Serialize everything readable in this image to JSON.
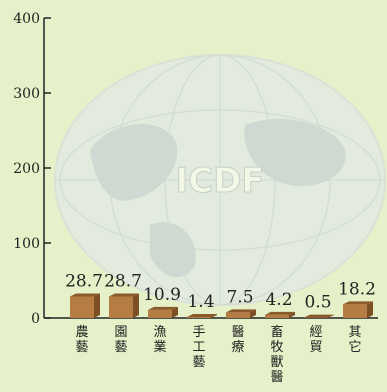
{
  "chart_data": {
    "type": "bar",
    "categories": [
      "農藝",
      "園藝",
      "漁業",
      "手工藝",
      "醫療",
      "畜牧獸醫",
      "經貿",
      "其它"
    ],
    "values": [
      28.7,
      28.7,
      10.9,
      1.4,
      7.5,
      4.2,
      0.5,
      18.2
    ],
    "value_labels": [
      "28.7",
      "28.7",
      "10.9",
      "1.4",
      "7.5",
      "4.2",
      "0.5",
      "18.2"
    ],
    "y_ticks": [
      0,
      100,
      200,
      300,
      400
    ],
    "ylim": [
      0,
      400
    ],
    "title": "",
    "xlabel": "",
    "ylabel": "",
    "grid": false,
    "watermark_text": "ICDF",
    "colors": {
      "background": "#e6f0c9",
      "bar_front": "#b57d43",
      "bar_top": "#8a5a2b",
      "bar_side": "#7c4f24",
      "axis": "#222222"
    }
  }
}
